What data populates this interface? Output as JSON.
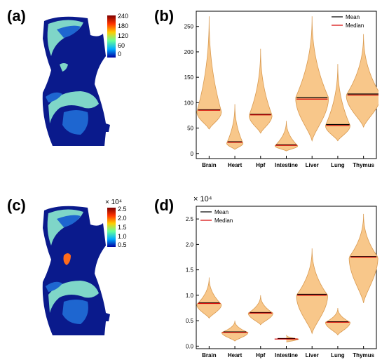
{
  "panels": {
    "a": {
      "letter": "(a)"
    },
    "b": {
      "letter": "(b)"
    },
    "c": {
      "letter": "(c)"
    },
    "d": {
      "letter": "(d)"
    }
  },
  "colorbars": {
    "a": {
      "ticks": [
        "240",
        "180",
        "120",
        "60",
        "0"
      ],
      "colors": [
        "#7f0000",
        "#ff3300",
        "#ffcc00",
        "#66ff99",
        "#00aaff",
        "#0000a0"
      ]
    },
    "c": {
      "exponent": "× 10⁴",
      "ticks": [
        "2.5",
        "2.0",
        "1.5",
        "1.0",
        "0.5"
      ],
      "colors": [
        "#7f0000",
        "#ff3300",
        "#ffcc00",
        "#66ff99",
        "#00aaff",
        "#0000a0"
      ]
    }
  },
  "maps": {
    "body_color": "#0a1a8c",
    "organ_color_light": "#7fd6c8",
    "organ_color_mid": "#1e66d0",
    "hot_spot_color": "#ff6a1a"
  },
  "chart_data": [
    {
      "type": "violin",
      "panel": "b",
      "categories": [
        "Brain",
        "Heart",
        "Hpf",
        "Intestine",
        "Liver",
        "Lung",
        "Thymus"
      ],
      "ylim": [
        -10,
        280
      ],
      "yticks": [
        0,
        50,
        100,
        150,
        200,
        250
      ],
      "ytick_labels": [
        "0",
        "50",
        "100",
        "150",
        "200",
        "250"
      ],
      "legend": [
        {
          "name": "Mean",
          "color": "#000000"
        },
        {
          "name": "Median",
          "color": "#d40000"
        }
      ],
      "legend_position": "top-right",
      "fill_color": "#f8c78a",
      "edge_color": "#d99a50",
      "violins": [
        {
          "min": 48,
          "max": 270,
          "peak": 82,
          "halfwidth": 0.3,
          "mean": 86,
          "median": 85
        },
        {
          "min": 8,
          "max": 97,
          "peak": 20,
          "halfwidth": 0.2,
          "mean": 23,
          "median": 22
        },
        {
          "min": 40,
          "max": 206,
          "peak": 75,
          "halfwidth": 0.28,
          "mean": 77,
          "median": 76
        },
        {
          "min": 5,
          "max": 64,
          "peak": 15,
          "halfwidth": 0.28,
          "mean": 17,
          "median": 16
        },
        {
          "min": 25,
          "max": 270,
          "peak": 110,
          "halfwidth": 0.4,
          "mean": 110,
          "median": 107
        },
        {
          "min": 25,
          "max": 176,
          "peak": 55,
          "halfwidth": 0.3,
          "mean": 57,
          "median": 55
        },
        {
          "min": 52,
          "max": 235,
          "peak": 115,
          "halfwidth": 0.42,
          "mean": 117,
          "median": 115
        }
      ]
    },
    {
      "type": "violin",
      "panel": "d",
      "exponent_label": "× 10⁴",
      "categories": [
        "Brain",
        "Heart",
        "Hpf",
        "Intestine",
        "Liver",
        "Lung",
        "Thymus"
      ],
      "ylim": [
        -0.05,
        2.75
      ],
      "yticks": [
        0.0,
        0.5,
        1.0,
        1.5,
        2.0,
        2.5
      ],
      "ytick_labels": [
        "0.0",
        "0.5",
        "1.0",
        "1.5",
        "2.0",
        "2.5"
      ],
      "legend": [
        {
          "name": "Mean",
          "color": "#000000"
        },
        {
          "name": "Median",
          "color": "#d40000"
        }
      ],
      "legend_position": "top-left",
      "fill_color": "#f8c78a",
      "edge_color": "#d99a50",
      "violins": [
        {
          "min": 0.55,
          "max": 1.35,
          "peak": 0.82,
          "halfwidth": 0.3,
          "mean": 0.85,
          "median": 0.84
        },
        {
          "min": 0.1,
          "max": 0.5,
          "peak": 0.27,
          "halfwidth": 0.32,
          "mean": 0.28,
          "median": 0.27
        },
        {
          "min": 0.42,
          "max": 1.0,
          "peak": 0.65,
          "halfwidth": 0.3,
          "mean": 0.66,
          "median": 0.65
        },
        {
          "min": 0.08,
          "max": 0.22,
          "peak": 0.14,
          "halfwidth": 0.3,
          "mean": 0.15,
          "median": 0.14
        },
        {
          "min": 0.25,
          "max": 1.92,
          "peak": 1.0,
          "halfwidth": 0.38,
          "mean": 1.02,
          "median": 1.0
        },
        {
          "min": 0.22,
          "max": 0.75,
          "peak": 0.47,
          "halfwidth": 0.3,
          "mean": 0.48,
          "median": 0.47
        },
        {
          "min": 0.85,
          "max": 2.6,
          "peak": 1.75,
          "halfwidth": 0.35,
          "mean": 1.76,
          "median": 1.75
        }
      ]
    }
  ]
}
